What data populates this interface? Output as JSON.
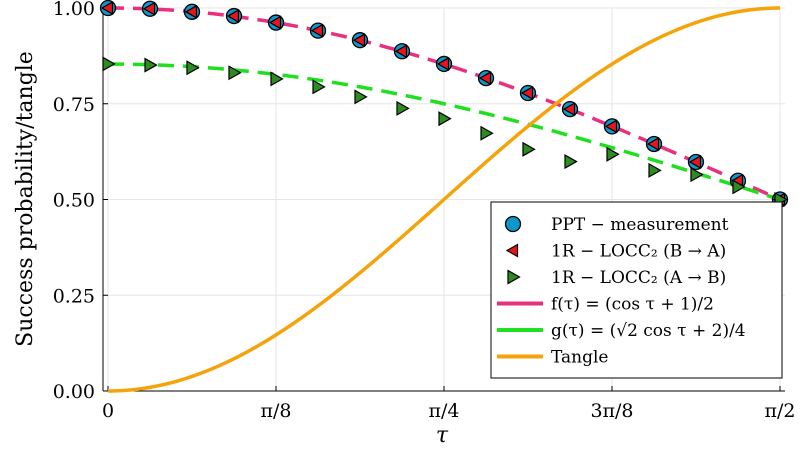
{
  "chart_data": {
    "type": "line",
    "xlabel": "τ",
    "ylabel": "Success probability/tangle",
    "xlim": [
      0,
      1.5708
    ],
    "ylim": [
      0,
      1
    ],
    "x_ticks": [
      {
        "value": 0,
        "label": "0"
      },
      {
        "value": 0.3927,
        "label": "π/8"
      },
      {
        "value": 0.7854,
        "label": "π/4"
      },
      {
        "value": 1.1781,
        "label": "3π/8"
      },
      {
        "value": 1.5708,
        "label": "π/2"
      }
    ],
    "y_ticks": [
      {
        "value": 0.0,
        "label": "0.00"
      },
      {
        "value": 0.25,
        "label": "0.25"
      },
      {
        "value": 0.5,
        "label": "0.50"
      },
      {
        "value": 0.75,
        "label": "0.75"
      },
      {
        "value": 1.0,
        "label": "1.00"
      }
    ],
    "grid": true,
    "legend_position": "bottom-right",
    "curves": [
      {
        "name": "f(τ) = (cos τ + 1)/2",
        "function": "(cos(t)+1)/2",
        "color": "#e8307c",
        "style": "dashed"
      },
      {
        "name": "g(τ) = (√2 cos τ + 2)/4",
        "function": "(sqrt2*cos(t)+2)/4",
        "color": "#1ee01e",
        "style": "dashed"
      },
      {
        "name": "Tangle",
        "function": "sin(t)^2",
        "color": "#f5a30a",
        "style": "solid"
      }
    ],
    "series": [
      {
        "name": "PPT − measurement",
        "marker": "circle",
        "color": "#0e98c9",
        "x": [
          0,
          0.0982,
          0.1963,
          0.2945,
          0.3927,
          0.4909,
          0.589,
          0.6872,
          0.7854,
          0.8836,
          0.9817,
          1.0799,
          1.1781,
          1.2763,
          1.3744,
          1.4726,
          1.5708
        ],
        "y": [
          1.0,
          0.998,
          0.99,
          0.979,
          0.962,
          0.941,
          0.916,
          0.887,
          0.854,
          0.817,
          0.778,
          0.736,
          0.691,
          0.645,
          0.598,
          0.549,
          0.5
        ]
      },
      {
        "name": "1R − LOCC₂ (B → A)",
        "marker": "triangle-left",
        "color": "#e8131c",
        "x": [
          0,
          0.0982,
          0.1963,
          0.2945,
          0.3927,
          0.4909,
          0.589,
          0.6872,
          0.7854,
          0.8836,
          0.9817,
          1.0799,
          1.1781,
          1.2763,
          1.3744,
          1.4726,
          1.5708
        ],
        "y": [
          1.0,
          0.998,
          0.99,
          0.979,
          0.962,
          0.941,
          0.916,
          0.887,
          0.854,
          0.817,
          0.778,
          0.736,
          0.691,
          0.645,
          0.598,
          0.549,
          0.5
        ]
      },
      {
        "name": "1R − LOCC₂ (A → B)",
        "marker": "triangle-right",
        "color": "#2e8b22",
        "x": [
          0,
          0.0982,
          0.1963,
          0.2945,
          0.3927,
          0.4909,
          0.589,
          0.6872,
          0.7854,
          0.8836,
          0.9817,
          1.0799,
          1.1781,
          1.2763,
          1.3744,
          1.4726,
          1.5708
        ],
        "y": [
          0.854,
          0.851,
          0.844,
          0.831,
          0.815,
          0.794,
          0.768,
          0.738,
          0.711,
          0.673,
          0.631,
          0.599,
          0.618,
          0.576,
          0.565,
          0.533,
          0.5
        ]
      }
    ],
    "legend": [
      {
        "label": "PPT − measurement",
        "kind": "marker",
        "marker": "circle",
        "color": "#0e98c9"
      },
      {
        "label": "1R − LOCC₂ (B → A)",
        "kind": "marker",
        "marker": "triangle-left",
        "color": "#e8131c"
      },
      {
        "label": "1R − LOCC₂ (A → B)",
        "kind": "marker",
        "marker": "triangle-right",
        "color": "#2e8b22"
      },
      {
        "label": "f(τ) = (cos τ + 1)/2",
        "kind": "line",
        "color": "#e8307c"
      },
      {
        "label": "g(τ) = (√2 cos τ + 2)/4",
        "kind": "line",
        "color": "#1ee01e"
      },
      {
        "label": "Tangle",
        "kind": "line",
        "color": "#f5a30a"
      }
    ]
  }
}
